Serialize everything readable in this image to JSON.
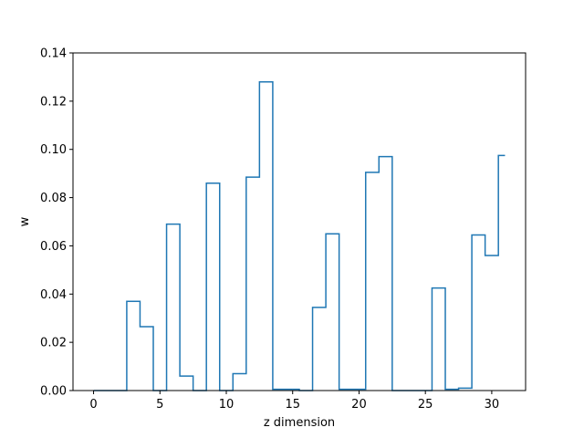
{
  "chart_data": {
    "type": "line",
    "drawstyle": "steps-mid",
    "title": "",
    "xlabel": "z dimension",
    "ylabel": "w",
    "xlim": [
      -1.55,
      32.55
    ],
    "ylim": [
      0,
      0.14
    ],
    "x_ticks": [
      0,
      5,
      10,
      15,
      20,
      25,
      30
    ],
    "x_tick_labels": [
      "0",
      "5",
      "10",
      "15",
      "20",
      "25",
      "30"
    ],
    "y_ticks": [
      0.0,
      0.02,
      0.04,
      0.06,
      0.08,
      0.1,
      0.12,
      0.14
    ],
    "y_tick_labels": [
      "0.00",
      "0.02",
      "0.04",
      "0.06",
      "0.08",
      "0.10",
      "0.12",
      "0.14"
    ],
    "grid": false,
    "series_color": "#1f77b4",
    "x": [
      0,
      1,
      2,
      3,
      4,
      5,
      6,
      7,
      8,
      9,
      10,
      11,
      12,
      13,
      14,
      15,
      16,
      17,
      18,
      19,
      20,
      21,
      22,
      23,
      24,
      25,
      26,
      27,
      28,
      29,
      30,
      31
    ],
    "values": [
      0.0,
      0.0,
      0.0,
      0.037,
      0.0265,
      0.0,
      0.069,
      0.006,
      0.0,
      0.086,
      0.0,
      0.007,
      0.0885,
      0.128,
      0.0005,
      0.0005,
      0.0,
      0.0345,
      0.065,
      0.0005,
      0.0005,
      0.0905,
      0.097,
      0.0,
      0.0,
      0.0,
      0.0425,
      0.0005,
      0.001,
      0.0645,
      0.056,
      0.0975
    ]
  }
}
